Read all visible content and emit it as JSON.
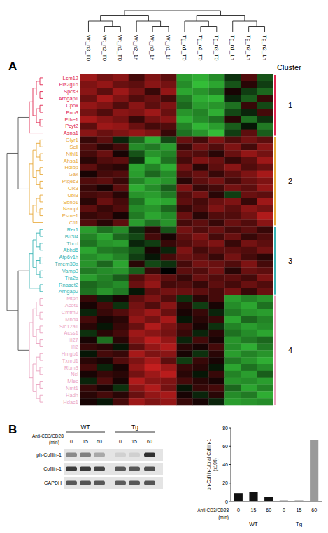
{
  "panels": [
    "A",
    "B"
  ],
  "chart_data": [
    {
      "type": "heatmap",
      "x": [
        "Wt_n3_T0",
        "Wt_n2_T0",
        "Wt_n1_T0",
        "Wt_n2_1h",
        "Wt_n3_1h",
        "Wt_n1_1h",
        "Tg_n1_T0",
        "Tg_n2_T0",
        "Tg_n3_T0",
        "Tg_n1_1h",
        "Tg_n3_1h",
        "Tg_n2_1h"
      ],
      "cluster_title": "Cluster",
      "color_range": [
        -2,
        2
      ],
      "clusters": [
        {
          "label": "1",
          "color": "#e0264f",
          "rows": [
            "Lsm12",
            "Pla2g16",
            "Spcs3",
            "Arhgap1",
            "Cpox",
            "Eno3",
            "Ethe1",
            "Pcyt2",
            "Asna1"
          ],
          "cells": [
            [
              1.2,
              0.8,
              1.0,
              0.4,
              0.9,
              0.6,
              -1.4,
              -1.6,
              -1.2,
              -0.3,
              0.5,
              -0.6
            ],
            [
              0.9,
              1.1,
              0.7,
              0.6,
              1.0,
              0.8,
              -1.2,
              -1.8,
              -1.5,
              -0.6,
              0.2,
              -0.4
            ],
            [
              1.0,
              0.6,
              1.2,
              0.8,
              0.3,
              1.1,
              -1.5,
              -1.3,
              -1.0,
              0.1,
              -0.4,
              -0.8
            ],
            [
              0.7,
              1.3,
              0.9,
              0.5,
              0.7,
              0.4,
              -1.0,
              -1.6,
              -1.7,
              -0.2,
              -0.7,
              0.3
            ],
            [
              1.1,
              0.9,
              0.5,
              1.0,
              0.6,
              0.9,
              -0.8,
              -1.4,
              -1.3,
              -0.9,
              0.3,
              -0.5
            ],
            [
              0.8,
              0.5,
              1.0,
              0.9,
              1.2,
              0.7,
              -1.3,
              -1.1,
              -1.6,
              -0.5,
              -0.2,
              0.4
            ],
            [
              1.3,
              1.0,
              0.8,
              0.3,
              0.8,
              1.0,
              -1.6,
              -1.2,
              -0.9,
              0.2,
              -0.9,
              -0.3
            ],
            [
              0.6,
              1.2,
              1.1,
              0.7,
              0.4,
              0.5,
              -1.1,
              -1.7,
              -1.4,
              -0.7,
              -0.1,
              -1.0
            ],
            [
              1.0,
              0.7,
              0.9,
              1.1,
              0.9,
              0.3,
              -0.9,
              -1.3,
              -1.8,
              -0.4,
              0.6,
              -0.7
            ]
          ]
        },
        {
          "label": "2",
          "color": "#e8a838",
          "rows": [
            "Glyr1",
            "Sell",
            "Nthl1",
            "Ahsa1",
            "Hdlbp",
            "Gak",
            "Ptges3",
            "Clk3",
            "Ubl3",
            "Sbno1",
            "Nampt",
            "Psme1",
            "Cfl1"
          ],
          "cells": [
            [
              0.3,
              0.6,
              -0.2,
              -0.8,
              -1.6,
              -0.5,
              0.7,
              0.4,
              0.9,
              0.5,
              0.8,
              0.6
            ],
            [
              0.5,
              0.2,
              0.4,
              -1.2,
              -1.0,
              -1.4,
              0.3,
              0.8,
              0.5,
              0.9,
              0.4,
              1.0
            ],
            [
              0.4,
              0.7,
              0.1,
              -0.6,
              -1.3,
              -1.1,
              0.6,
              0.5,
              0.2,
              0.7,
              1.1,
              0.8
            ],
            [
              0.2,
              0.5,
              0.6,
              -0.3,
              -1.7,
              -0.9,
              0.4,
              0.9,
              0.7,
              0.3,
              0.6,
              1.2
            ],
            [
              0.6,
              0.3,
              0.2,
              -1.5,
              -1.1,
              -1.6,
              0.8,
              0.2,
              0.6,
              1.0,
              0.5,
              0.7
            ],
            [
              0.1,
              0.4,
              0.5,
              -1.4,
              -0.8,
              -1.2,
              0.5,
              0.7,
              0.3,
              0.6,
              0.9,
              1.3
            ],
            [
              0.5,
              0.6,
              0.3,
              -1.1,
              -1.5,
              -1.3,
              0.2,
              0.6,
              0.8,
              0.4,
              0.7,
              0.9
            ],
            [
              0.3,
              0.1,
              0.6,
              -1.6,
              -1.2,
              -0.7,
              0.9,
              0.3,
              0.4,
              0.8,
              0.6,
              1.1
            ],
            [
              0.4,
              0.5,
              0.2,
              -1.3,
              -1.4,
              -1.0,
              0.5,
              0.8,
              0.2,
              -0.4,
              0.7,
              0.6
            ],
            [
              0.2,
              0.7,
              0.4,
              -0.9,
              -1.6,
              -1.5,
              0.6,
              0.4,
              0.7,
              0.9,
              0.3,
              1.2
            ],
            [
              0.6,
              0.3,
              0.5,
              -1.2,
              -1.3,
              -0.8,
              0.3,
              0.5,
              0.9,
              0.6,
              1.0,
              0.8
            ],
            [
              0.3,
              0.4,
              0.1,
              -1.0,
              -1.5,
              -1.2,
              0.7,
              0.2,
              0.5,
              0.5,
              0.8,
              1.4
            ],
            [
              0.5,
              0.2,
              0.6,
              -1.4,
              -0.9,
              -1.3,
              0.4,
              0.6,
              0.3,
              0.7,
              0.5,
              1.0
            ]
          ]
        },
        {
          "label": "3",
          "color": "#38b4b4",
          "rows": [
            "Rer1",
            "Btf3l4",
            "Tbcd",
            "Abhd6",
            "Atp6v1h",
            "Tmem30a",
            "Vamp3",
            "Tra2a",
            "Rnaset2",
            "Arhgap2"
          ],
          "cells": [
            [
              -1.4,
              -0.9,
              -1.2,
              -0.3,
              0.2,
              -0.6,
              0.8,
              0.5,
              0.7,
              0.4,
              0.6,
              0.3
            ],
            [
              -1.1,
              -1.5,
              -0.8,
              -0.5,
              0.4,
              0.1,
              0.6,
              0.9,
              0.4,
              0.7,
              0.3,
              0.5
            ],
            [
              -0.9,
              -1.3,
              -1.4,
              -0.2,
              -0.4,
              0.3,
              0.5,
              0.7,
              0.9,
              0.3,
              0.8,
              0.6
            ],
            [
              -1.5,
              -1.0,
              -0.9,
              -0.6,
              0.1,
              -0.2,
              0.9,
              0.4,
              0.6,
              0.6,
              0.5,
              0.8
            ],
            [
              -1.2,
              -1.4,
              -1.1,
              -0.4,
              -0.1,
              0.4,
              0.7,
              0.6,
              0.3,
              0.8,
              0.4,
              0.2
            ],
            [
              -1.3,
              -0.8,
              -1.5,
              0.2,
              -0.5,
              -0.3,
              0.4,
              0.8,
              0.7,
              0.5,
              0.9,
              0.4
            ],
            [
              -1.0,
              -1.2,
              -1.3,
              -0.7,
              0.3,
              0.0,
              0.6,
              0.5,
              0.8,
              0.2,
              0.7,
              0.6
            ],
            [
              -1.4,
              -1.1,
              -0.7,
              0.5,
              0.9,
              0.6,
              0.3,
              0.7,
              0.5,
              0.6,
              0.4,
              0.9
            ],
            [
              -0.8,
              -1.0,
              -1.2,
              0.7,
              1.1,
              0.4,
              0.5,
              0.3,
              0.6,
              0.4,
              0.7,
              0.5
            ],
            [
              -0.9,
              -1.3,
              -1.0,
              -0.1,
              0.6,
              0.8,
              0.7,
              0.6,
              0.4,
              0.8,
              0.3,
              0.7
            ]
          ]
        },
        {
          "label": "4",
          "color": "#eaa3bf",
          "rows": [
            "Mtpn",
            "Acot1",
            "Cmtm2",
            "Mbd4",
            "Slc12a1",
            "Acss1",
            "Ifi27",
            "Ifi2",
            "Hmgb1",
            "Txnrd1",
            "Rbm3",
            "Ncl",
            "Mlec",
            "Nmt1",
            "Hadh",
            "Hdac1"
          ],
          "cells": [
            [
              0.3,
              -0.2,
              0.1,
              0.6,
              0.9,
              0.5,
              -0.3,
              0.2,
              0.4,
              -1.4,
              -1.1,
              -1.3
            ],
            [
              0.1,
              0.4,
              -0.3,
              0.8,
              0.5,
              1.0,
              0.2,
              -0.4,
              0.1,
              -1.2,
              -1.5,
              -0.9
            ],
            [
              -0.2,
              0.3,
              0.5,
              0.9,
              1.2,
              0.7,
              0.1,
              0.3,
              -0.2,
              -1.0,
              -1.3,
              -1.4
            ],
            [
              0.4,
              0.1,
              0.2,
              1.1,
              0.8,
              1.3,
              -0.1,
              0.2,
              0.3,
              -1.5,
              -0.8,
              -1.1
            ],
            [
              0.2,
              -0.1,
              0.3,
              0.7,
              1.4,
              0.9,
              0.4,
              0.1,
              -0.3,
              -1.1,
              -1.4,
              -1.2
            ],
            [
              -0.3,
              0.2,
              0.4,
              1.2,
              1.0,
              0.8,
              0.3,
              -0.2,
              0.2,
              -0.9,
              -1.2,
              -1.5
            ],
            [
              0.1,
              -0.9,
              0.2,
              1.0,
              1.5,
              1.1,
              -0.2,
              0.4,
              0.1,
              -1.3,
              -1.0,
              -0.8
            ],
            [
              0.3,
              0.2,
              -0.1,
              0.6,
              1.1,
              1.4,
              0.2,
              0.1,
              0.4,
              -1.2,
              -1.6,
              -1.0
            ],
            [
              -0.1,
              0.4,
              0.3,
              1.3,
              0.9,
              1.0,
              0.1,
              -0.3,
              0.2,
              -1.4,
              -1.1,
              -1.3
            ],
            [
              0.2,
              0.1,
              0.5,
              0.9,
              1.3,
              0.6,
              -0.4,
              0.3,
              0.1,
              -1.0,
              -1.3,
              -1.6
            ],
            [
              0.4,
              -0.2,
              0.1,
              1.1,
              1.6,
              1.2,
              0.3,
              0.2,
              -0.1,
              -1.5,
              -0.9,
              -1.2
            ],
            [
              0.1,
              0.3,
              0.2,
              0.8,
              1.2,
              1.5,
              0.2,
              -0.1,
              0.3,
              -1.1,
              -1.4,
              -0.7
            ],
            [
              -0.2,
              0.5,
              0.1,
              1.4,
              1.0,
              0.9,
              0.4,
              0.2,
              0.1,
              -1.3,
              -1.2,
              -1.4
            ],
            [
              0.3,
              0.1,
              -0.3,
              1.0,
              1.4,
              0.8,
              -0.1,
              0.3,
              0.4,
              -0.8,
              -1.5,
              -1.1
            ],
            [
              0.2,
              0.4,
              0.2,
              0.7,
              1.1,
              1.3,
              0.1,
              -0.2,
              0.2,
              -1.2,
              -1.0,
              -1.6
            ],
            [
              0.1,
              -0.1,
              0.4,
              1.2,
              0.9,
              1.1,
              0.3,
              0.1,
              -0.2,
              -1.4,
              -1.3,
              -1.2
            ]
          ]
        }
      ]
    },
    {
      "type": "bar",
      "categories": [
        "0",
        "15",
        "60",
        "0",
        "15",
        "60"
      ],
      "groups": [
        "WT",
        "Tg"
      ],
      "values": [
        9,
        10,
        5,
        1,
        1,
        67
      ],
      "colors": [
        "#111111",
        "#111111",
        "#111111",
        "#444444",
        "#444444",
        "#9a9a9a"
      ],
      "ylim": [
        0,
        80
      ],
      "yticks": [
        0,
        20,
        40,
        60,
        80
      ],
      "ylabel": [
        "ph-Cofilin-1/total Cofilin-1",
        "(x100)"
      ],
      "xlabel": [
        "Anti-CD3/CD28",
        "(min)"
      ]
    }
  ],
  "blot": {
    "groups": [
      "WT",
      "Tg"
    ],
    "treatment": [
      "Anti-CD3/CD28",
      "(min)"
    ],
    "lanes": [
      "0",
      "15",
      "60",
      "0",
      "15",
      "60"
    ],
    "rows": [
      {
        "label": "ph-Cofilin-1",
        "intensity": [
          0.45,
          0.5,
          0.3,
          0.1,
          0.1,
          0.9
        ]
      },
      {
        "label": "Cofilin-1",
        "intensity": [
          0.85,
          0.85,
          0.8,
          0.7,
          0.7,
          0.75
        ]
      },
      {
        "label": "GAPDH",
        "intensity": [
          0.7,
          0.72,
          0.7,
          0.68,
          0.7,
          0.72
        ]
      }
    ]
  }
}
